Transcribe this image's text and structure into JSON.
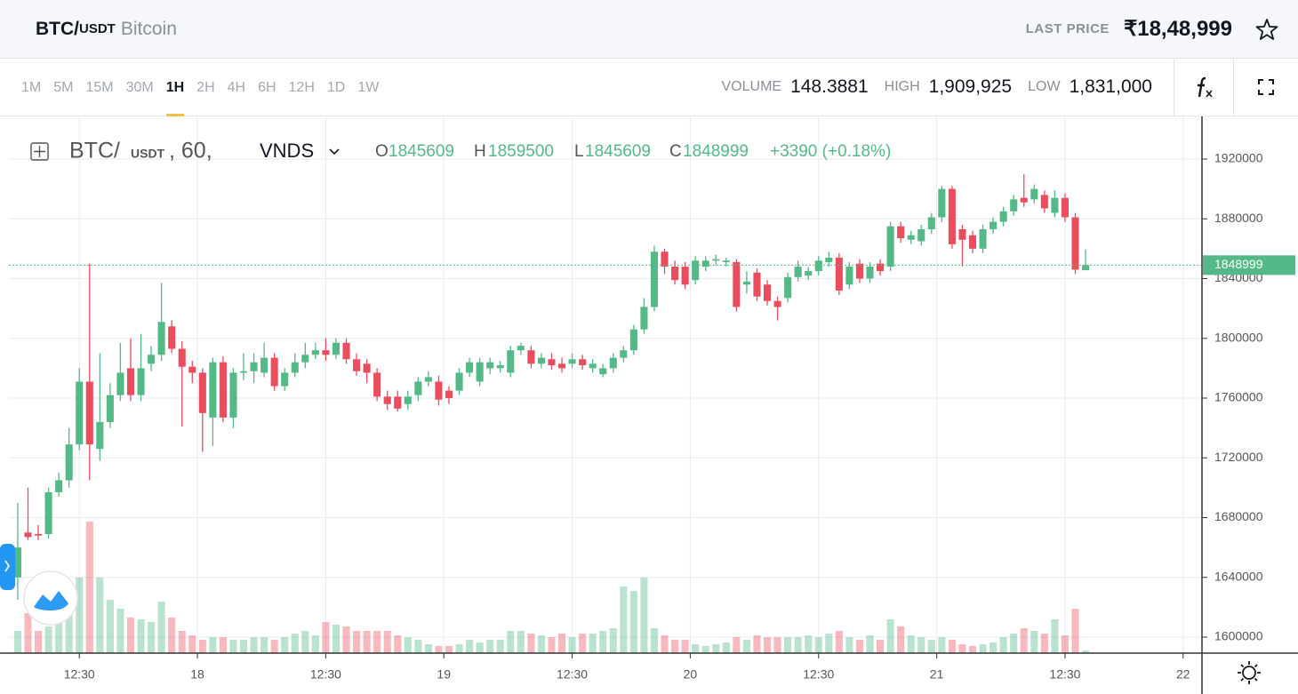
{
  "header": {
    "symbol": "BTC/",
    "quote": "USDT",
    "name": "Bitcoin",
    "last_price_label": "LAST PRICE",
    "last_price": "₹18,48,999"
  },
  "toolbar": {
    "intervals": [
      "1M",
      "5M",
      "15M",
      "30M",
      "1H",
      "2H",
      "4H",
      "6H",
      "12H",
      "1D",
      "1W"
    ],
    "active_interval": "1H",
    "stats": [
      {
        "label": "VOLUME",
        "value": "148.3881"
      },
      {
        "label": "HIGH",
        "value": "1,909,925"
      },
      {
        "label": "LOW",
        "value": "1,831,000"
      }
    ]
  },
  "legend": {
    "symbol": "BTC/",
    "quote": "USDT",
    "interval": ", 60,",
    "source": "VNDS",
    "labels": [
      "O",
      "H",
      "L",
      "C"
    ],
    "change": "+3390 (+0.18%)"
  },
  "chart_data": {
    "type": "candlestick",
    "up_color": "#53b987",
    "down_color": "#eb4d5c",
    "grid": true,
    "last_price_line": true,
    "xlim": [
      5.64,
      121.84
    ],
    "ylim": [
      1589300,
      1948550
    ],
    "volume_ylim": [
      0,
      20
    ],
    "xticks": [
      {
        "value": 12.5,
        "label": "12:30"
      },
      {
        "value": 24,
        "label": "18"
      },
      {
        "value": 36.5,
        "label": "12:30"
      },
      {
        "value": 48,
        "label": "19"
      },
      {
        "value": 60.5,
        "label": "12:30"
      },
      {
        "value": 72,
        "label": "20"
      },
      {
        "value": 84.5,
        "label": "12:30"
      },
      {
        "value": 96,
        "label": "21"
      },
      {
        "value": 108.5,
        "label": "12:30"
      },
      {
        "value": 120,
        "label": "22"
      }
    ],
    "yticks": [
      1600000,
      1640000,
      1680000,
      1720000,
      1760000,
      1800000,
      1840000,
      1880000,
      1920000
    ],
    "x": [
      6.5,
      7.5,
      8.5,
      9.5,
      10.5,
      11.5,
      12.5,
      13.5,
      14.5,
      15.5,
      16.5,
      17.5,
      18.5,
      19.5,
      20.5,
      21.5,
      22.5,
      23.5,
      24.5,
      25.5,
      26.5,
      27.5,
      28.5,
      29.5,
      30.5,
      31.5,
      32.5,
      33.5,
      34.5,
      35.5,
      36.5,
      37.5,
      38.5,
      39.5,
      40.5,
      41.5,
      42.5,
      43.5,
      44.5,
      45.5,
      46.5,
      47.5,
      48.5,
      49.5,
      50.5,
      51.5,
      52.5,
      53.5,
      54.5,
      55.5,
      56.5,
      57.5,
      58.5,
      59.5,
      60.5,
      61.5,
      62.5,
      63.5,
      64.5,
      65.5,
      66.5,
      67.5,
      68.5,
      69.5,
      70.5,
      71.5,
      72.5,
      73.5,
      74.5,
      75.5,
      76.5,
      77.5,
      78.5,
      79.5,
      80.5,
      81.5,
      82.5,
      83.5,
      84.5,
      85.5,
      86.5,
      87.5,
      88.5,
      89.5,
      90.5,
      91.5,
      92.5,
      93.5,
      94.5,
      95.5,
      96.5,
      97.5,
      98.5,
      99.5,
      100.5,
      101.5,
      102.5,
      103.5,
      104.5,
      105.5,
      106.5,
      107.5,
      108.5,
      109.5,
      110.5
    ],
    "open": [
      1640000,
      1670000,
      1669000,
      1669000,
      1697000,
      1705000,
      1729000,
      1771000,
      1726000,
      1744000,
      1762000,
      1780000,
      1762000,
      1783000,
      1789000,
      1808000,
      1793000,
      1781000,
      1777000,
      1747000,
      1784000,
      1747000,
      1777000,
      1778000,
      1777000,
      1787000,
      1768000,
      1777000,
      1784000,
      1789000,
      1792000,
      1789000,
      1797000,
      1786000,
      1783000,
      1777000,
      1761000,
      1761000,
      1756000,
      1762000,
      1771000,
      1771000,
      1765000,
      1765000,
      1777000,
      1771000,
      1780000,
      1780000,
      1777000,
      1792000,
      1792000,
      1783000,
      1786000,
      1783000,
      1783000,
      1786000,
      1780000,
      1776000,
      1780000,
      1787000,
      1792000,
      1806000,
      1821000,
      1858000,
      1848000,
      1848000,
      1839000,
      1848000,
      1852000,
      1851000,
      1851000,
      1836000,
      1844000,
      1836000,
      1825000,
      1827000,
      1841000,
      1842000,
      1845000,
      1851000,
      1854000,
      1836000,
      1850000,
      1840000,
      1850000,
      1848000,
      1875000,
      1866000,
      1865000,
      1873000,
      1881000,
      1900000,
      1873000,
      1869000,
      1860000,
      1873000,
      1878000,
      1885000,
      1894000,
      1893000,
      1896000,
      1884000,
      1894000,
      1881000,
      1845609
    ],
    "high": [
      1690000,
      1700000,
      1675000,
      1700000,
      1710000,
      1740000,
      1780000,
      1850000,
      1790000,
      1770000,
      1797000,
      1800000,
      1803000,
      1795000,
      1837000,
      1812000,
      1798000,
      1785000,
      1780000,
      1787000,
      1788000,
      1780000,
      1790000,
      1790000,
      1797000,
      1790000,
      1780000,
      1790000,
      1797000,
      1797000,
      1800000,
      1800000,
      1800000,
      1790000,
      1786000,
      1780000,
      1765000,
      1765000,
      1765000,
      1774000,
      1778000,
      1775000,
      1768000,
      1780000,
      1787000,
      1787000,
      1787000,
      1785000,
      1795000,
      1797000,
      1795000,
      1790000,
      1790000,
      1787000,
      1790000,
      1789000,
      1786000,
      1783000,
      1790000,
      1795000,
      1809000,
      1827000,
      1862000,
      1860000,
      1852000,
      1851000,
      1855000,
      1855000,
      1856000,
      1854000,
      1853000,
      1845000,
      1847000,
      1839000,
      1828000,
      1844000,
      1852000,
      1848000,
      1855000,
      1858000,
      1857000,
      1851000,
      1853000,
      1851000,
      1853000,
      1878000,
      1878000,
      1872000,
      1876000,
      1884000,
      1902000,
      1902000,
      1876000,
      1872000,
      1876000,
      1881000,
      1888000,
      1896000,
      1910000,
      1903000,
      1899000,
      1899000,
      1897000,
      1884000,
      1859500
    ],
    "low": [
      1625000,
      1665000,
      1665000,
      1666000,
      1694000,
      1700000,
      1725000,
      1705000,
      1718000,
      1740000,
      1758000,
      1758000,
      1758000,
      1778000,
      1785000,
      1790000,
      1741000,
      1770000,
      1724000,
      1728000,
      1744000,
      1740000,
      1772000,
      1770000,
      1774000,
      1765000,
      1765000,
      1774000,
      1780000,
      1786000,
      1785000,
      1786000,
      1783000,
      1775000,
      1770000,
      1758000,
      1752000,
      1751000,
      1752000,
      1758000,
      1768000,
      1755000,
      1756000,
      1762000,
      1774000,
      1768000,
      1776000,
      1777000,
      1774000,
      1789000,
      1780000,
      1780000,
      1779000,
      1777000,
      1780000,
      1779000,
      1777000,
      1774000,
      1777000,
      1784000,
      1789000,
      1803000,
      1818000,
      1843000,
      1836000,
      1833000,
      1836000,
      1845000,
      1849000,
      1848000,
      1818000,
      1830000,
      1825000,
      1822000,
      1812000,
      1824000,
      1838000,
      1839000,
      1842000,
      1848000,
      1829000,
      1833000,
      1837000,
      1837000,
      1842000,
      1845000,
      1864000,
      1863000,
      1862000,
      1870000,
      1878000,
      1860000,
      1848000,
      1857000,
      1857000,
      1870000,
      1875000,
      1882000,
      1888000,
      1890000,
      1884000,
      1881000,
      1878000,
      1843000,
      1845609
    ],
    "close": [
      1660000,
      1667000,
      1668000,
      1697000,
      1705000,
      1729000,
      1771000,
      1729000,
      1744000,
      1762000,
      1777000,
      1762000,
      1780000,
      1789000,
      1811000,
      1793000,
      1781000,
      1777000,
      1750000,
      1784000,
      1747000,
      1777000,
      1778000,
      1784000,
      1787000,
      1768000,
      1777000,
      1784000,
      1789000,
      1792000,
      1789000,
      1797000,
      1786000,
      1778000,
      1777000,
      1761000,
      1756000,
      1753000,
      1761000,
      1771000,
      1774000,
      1759000,
      1760000,
      1777000,
      1784000,
      1784000,
      1784000,
      1782000,
      1792000,
      1795000,
      1783000,
      1787000,
      1782000,
      1780000,
      1786000,
      1782000,
      1783000,
      1780000,
      1787000,
      1792000,
      1806000,
      1821000,
      1858000,
      1848000,
      1839000,
      1836000,
      1852000,
      1852000,
      1853000,
      1852000,
      1821000,
      1838000,
      1828000,
      1825000,
      1821000,
      1841000,
      1848000,
      1845000,
      1852000,
      1854000,
      1832000,
      1848000,
      1840000,
      1848000,
      1845000,
      1875000,
      1867000,
      1869000,
      1873000,
      1881000,
      1900000,
      1863000,
      1866000,
      1860000,
      1873000,
      1878000,
      1885000,
      1893000,
      1891000,
      1900000,
      1887000,
      1894000,
      1881000,
      1846000,
      1848999
    ],
    "volume": [
      2.5,
      4.5,
      2.5,
      3,
      3.5,
      5.5,
      8.5,
      14.8,
      8.5,
      6,
      5,
      4,
      3.8,
      3.5,
      5.8,
      4,
      2.5,
      2,
      1.5,
      1.8,
      1.8,
      1.5,
      1.5,
      1.8,
      1.8,
      1.5,
      1.8,
      2.2,
      2.5,
      2,
      3.5,
      3.2,
      3,
      2.5,
      2.5,
      2.5,
      2.5,
      2,
      1.8,
      1.5,
      1,
      0.8,
      0.8,
      1,
      1.5,
      1.2,
      1.5,
      1.5,
      2.5,
      2.5,
      2.2,
      2,
      1.8,
      2.2,
      1.8,
      2.2,
      2.2,
      2.5,
      2.8,
      7.5,
      7,
      8.5,
      2.8,
      2,
      1.5,
      1.5,
      1,
      0.8,
      1,
      1.2,
      1.8,
      1.5,
      2,
      1.8,
      1.8,
      1.8,
      1.8,
      2,
      1.8,
      2.2,
      2.5,
      1.8,
      1.5,
      2,
      1.5,
      3.8,
      3,
      2,
      1.8,
      1.5,
      1.8,
      1.5,
      1,
      0.8,
      1,
      1.2,
      1.8,
      2.2,
      2.8,
      2.5,
      2.2,
      3.8,
      2,
      5,
      0.3
    ]
  }
}
